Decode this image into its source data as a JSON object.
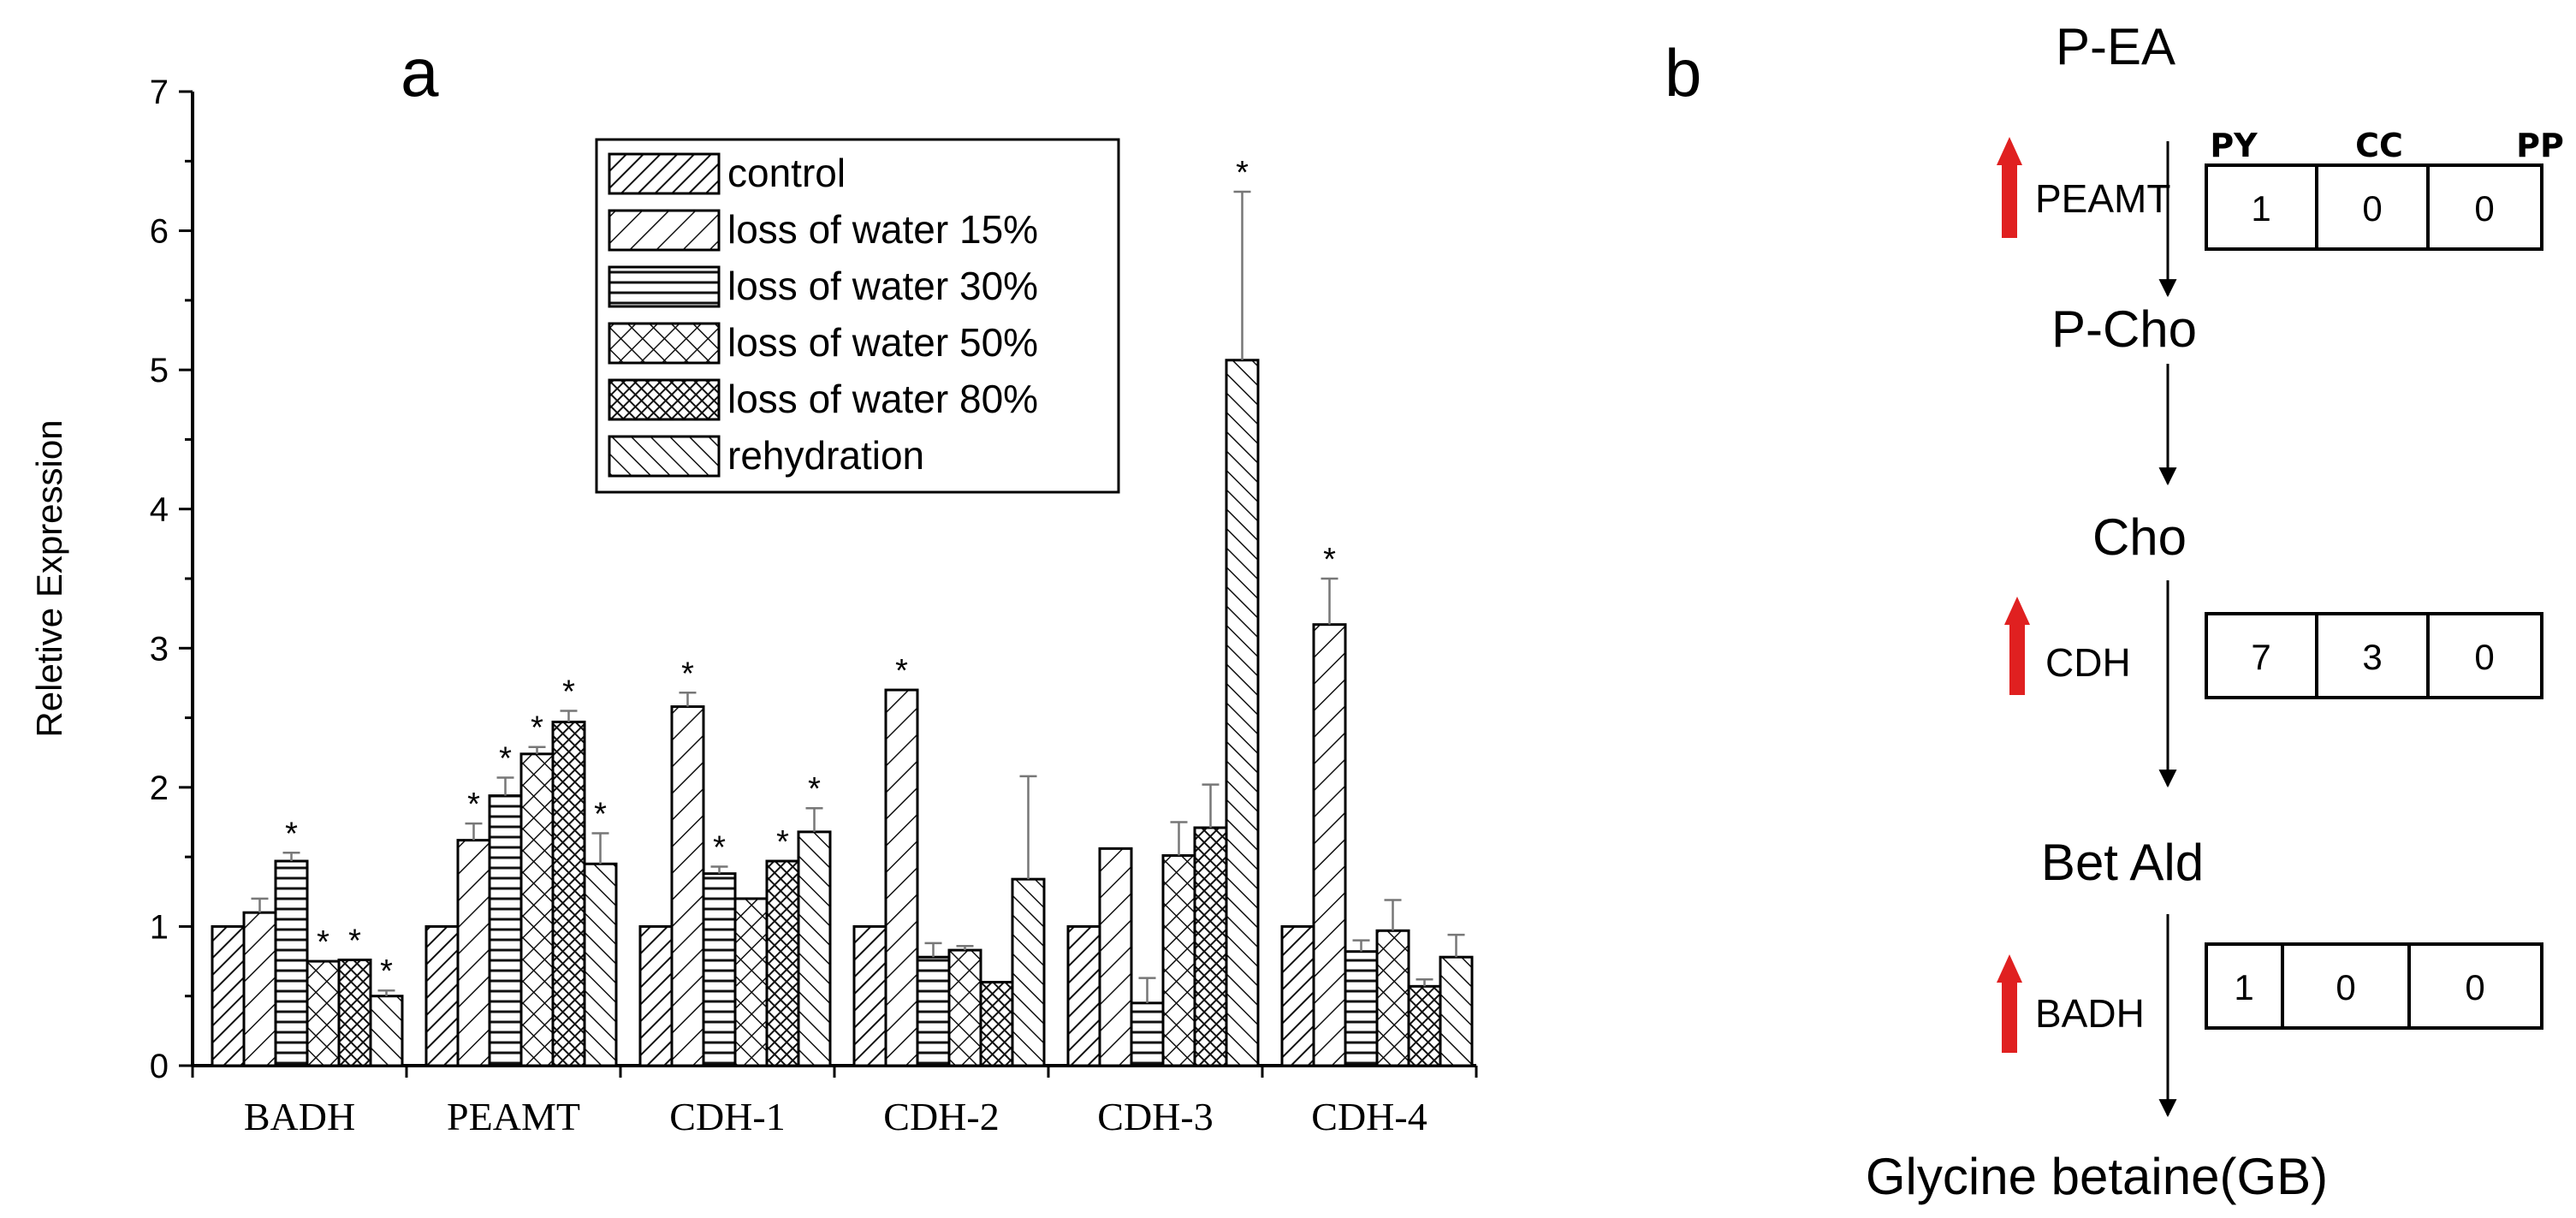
{
  "chart_data": {
    "type": "bar",
    "panel_label": "a",
    "title": "",
    "xlabel": "",
    "ylabel": "Reletive Expression",
    "ylim": [
      0,
      7
    ],
    "yticks": [
      "0",
      "1",
      "2",
      "3",
      "4",
      "5",
      "6",
      "7"
    ],
    "grid": false,
    "legend_position": "top-center",
    "categories": [
      "BADH",
      "PEAMT",
      "CDH-1",
      "CDH-2",
      "CDH-3",
      "CDH-4"
    ],
    "series": [
      {
        "name": "control",
        "pattern": "diag-down",
        "values": [
          1.0,
          1.0,
          1.0,
          1.0,
          1.0,
          1.0
        ],
        "errors": [
          0,
          0,
          0,
          0,
          0,
          0
        ],
        "significant": [
          false,
          false,
          false,
          false,
          false,
          false
        ]
      },
      {
        "name": "loss of water 15%",
        "pattern": "diag-down-wide",
        "values": [
          1.1,
          1.62,
          2.58,
          2.7,
          1.56,
          3.17
        ],
        "errors": [
          0.1,
          0.12,
          0.1,
          0,
          0,
          0.33
        ],
        "significant": [
          false,
          true,
          true,
          true,
          false,
          true
        ]
      },
      {
        "name": "loss of water 30%",
        "pattern": "horizontal",
        "values": [
          1.47,
          1.94,
          1.38,
          0.78,
          0.45,
          0.82
        ],
        "errors": [
          0.06,
          0.13,
          0.05,
          0.1,
          0.18,
          0.08
        ],
        "significant": [
          true,
          true,
          true,
          false,
          false,
          false
        ]
      },
      {
        "name": "loss of water 50%",
        "pattern": "crosshatch",
        "values": [
          0.75,
          2.24,
          1.2,
          0.83,
          1.51,
          0.97
        ],
        "errors": [
          0,
          0.05,
          0,
          0.03,
          0.24,
          0.22
        ],
        "significant": [
          true,
          true,
          false,
          false,
          false,
          false
        ]
      },
      {
        "name": "loss of water 80%",
        "pattern": "dense-crosshatch",
        "values": [
          0.76,
          2.47,
          1.47,
          0.6,
          1.71,
          0.57
        ],
        "errors": [
          0,
          0.08,
          0,
          0,
          0.31,
          0.05
        ],
        "significant": [
          true,
          true,
          true,
          false,
          false,
          false
        ]
      },
      {
        "name": "rehydration",
        "pattern": "diag-up",
        "values": [
          0.5,
          1.45,
          1.68,
          1.34,
          5.07,
          0.78
        ],
        "errors": [
          0.04,
          0.22,
          0.17,
          0.74,
          1.21,
          0.16
        ],
        "significant": [
          true,
          true,
          true,
          false,
          true,
          false
        ]
      }
    ]
  },
  "diagram": {
    "panel_label": "b",
    "table_headers": [
      "PY",
      "CC",
      "PP"
    ],
    "steps": [
      {
        "node": "P-EA"
      },
      {
        "node": "P-Cho",
        "enzyme": "PEAMT",
        "counts": [
          "1",
          "0",
          "0"
        ],
        "upregulated": true
      },
      {
        "node": "Cho"
      },
      {
        "node": "Bet Ald",
        "enzyme": "CDH",
        "counts": [
          "7",
          "3",
          "0"
        ],
        "upregulated": true
      },
      {
        "node": "Glycine betaine(GB)",
        "enzyme": "BADH",
        "counts": [
          "1",
          "0",
          "0"
        ],
        "upregulated": true
      }
    ],
    "arrow_color": "#e02020"
  }
}
